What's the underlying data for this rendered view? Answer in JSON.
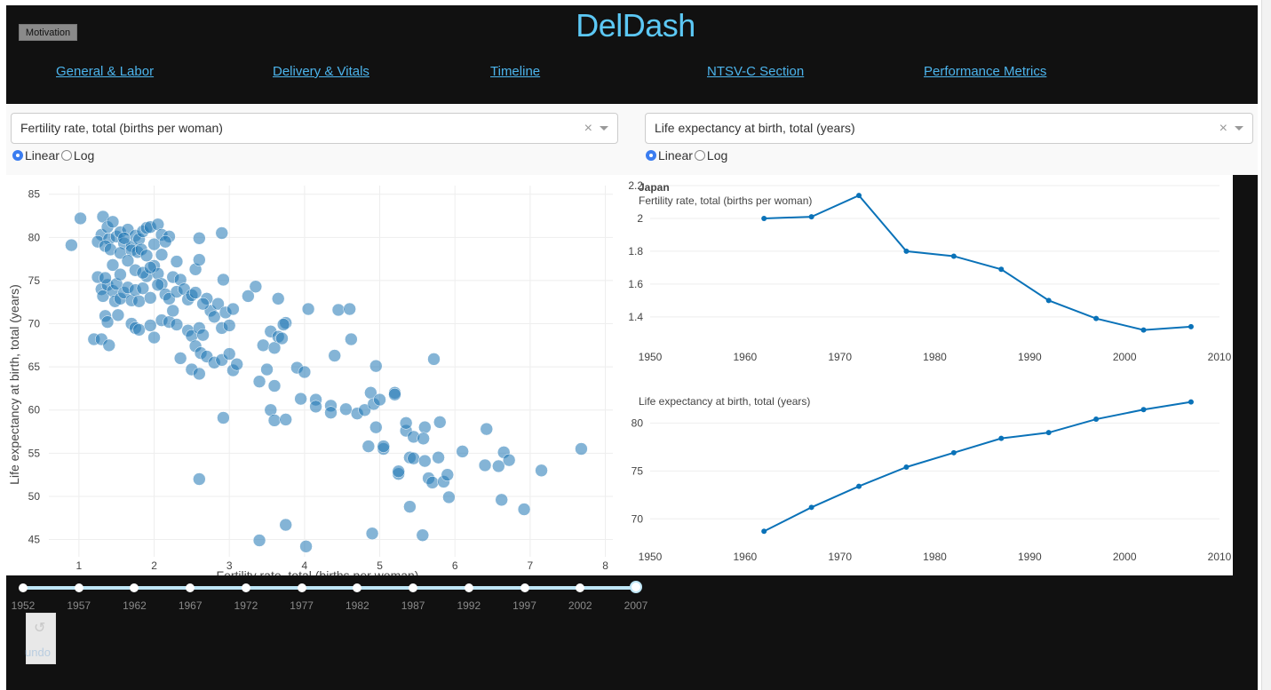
{
  "app": {
    "title": "DelDash",
    "motivation_label": "Motivation"
  },
  "nav": {
    "items": [
      {
        "label": "General & Labor"
      },
      {
        "label": "Delivery & Vitals"
      },
      {
        "label": "Timeline"
      },
      {
        "label": "NTSV-C Section"
      },
      {
        "label": "Performance Metrics"
      }
    ]
  },
  "x_control": {
    "selected": "Fertility rate, total (births per woman)",
    "clear": "×",
    "scale_options": [
      "Linear",
      "Log"
    ],
    "scale_selected": "Linear"
  },
  "y_control": {
    "selected": "Life expectancy at birth, total (years)",
    "clear": "×",
    "scale_options": [
      "Linear",
      "Log"
    ],
    "scale_selected": "Linear"
  },
  "colors": {
    "accent": "#5cc8f5",
    "link": "#4cb4ec",
    "series": "#1f77b4",
    "line": "#0a72b8",
    "background": "#111111"
  },
  "slider": {
    "marks": [
      "1952",
      "1957",
      "1962",
      "1967",
      "1972",
      "1977",
      "1982",
      "1987",
      "1992",
      "1997",
      "2002",
      "2007"
    ],
    "value": "2007"
  },
  "undo": {
    "label": "undo",
    "icon": "undo-icon"
  },
  "chart_data": [
    {
      "type": "scatter",
      "title": "",
      "xlabel": "Fertility rate, total (births per woman)",
      "ylabel": "Life expectancy at birth, total (years)",
      "xlim": [
        0.6,
        8.1
      ],
      "ylim": [
        43,
        86
      ],
      "x_ticks": [
        1,
        2,
        3,
        4,
        5,
        6,
        7,
        8
      ],
      "y_ticks": [
        45,
        50,
        55,
        60,
        65,
        70,
        75,
        80,
        85
      ],
      "grid": true,
      "points": [
        [
          0.9,
          79.1
        ],
        [
          1.02,
          82.2
        ],
        [
          1.3,
          80.3
        ],
        [
          1.32,
          82.4
        ],
        [
          1.38,
          81.2
        ],
        [
          1.45,
          81.8
        ],
        [
          1.25,
          79.5
        ],
        [
          1.4,
          79.8
        ],
        [
          1.5,
          80.1
        ],
        [
          1.55,
          80.6
        ],
        [
          1.6,
          79.3
        ],
        [
          1.65,
          80.9
        ],
        [
          1.7,
          79.0
        ],
        [
          1.75,
          80.2
        ],
        [
          1.8,
          79.8
        ],
        [
          1.85,
          80.7
        ],
        [
          1.9,
          81.1
        ],
        [
          1.95,
          81.2
        ],
        [
          2.05,
          81.5
        ],
        [
          2.1,
          80.3
        ],
        [
          2.2,
          80.1
        ],
        [
          1.35,
          79.0
        ],
        [
          1.42,
          78.6
        ],
        [
          1.55,
          78.2
        ],
        [
          1.6,
          79.9
        ],
        [
          1.7,
          78.5
        ],
        [
          1.78,
          78.3
        ],
        [
          1.83,
          78.6
        ],
        [
          1.9,
          77.9
        ],
        [
          2.0,
          79.2
        ],
        [
          2.1,
          78.0
        ],
        [
          2.15,
          79.5
        ],
        [
          1.25,
          75.4
        ],
        [
          1.3,
          74.0
        ],
        [
          1.32,
          73.2
        ],
        [
          1.38,
          74.5
        ],
        [
          1.45,
          73.8
        ],
        [
          1.48,
          72.6
        ],
        [
          1.5,
          74.6
        ],
        [
          1.55,
          72.9
        ],
        [
          1.6,
          73.6
        ],
        [
          1.65,
          74.2
        ],
        [
          1.7,
          72.7
        ],
        [
          1.75,
          73.9
        ],
        [
          1.8,
          72.6
        ],
        [
          1.85,
          74.1
        ],
        [
          1.9,
          75.5
        ],
        [
          1.95,
          73.0
        ],
        [
          2.0,
          76.7
        ],
        [
          2.05,
          75.8
        ],
        [
          2.1,
          74.6
        ],
        [
          2.15,
          73.4
        ],
        [
          2.2,
          72.9
        ],
        [
          2.25,
          75.4
        ],
        [
          2.3,
          73.7
        ],
        [
          2.35,
          75.1
        ],
        [
          2.4,
          74.0
        ],
        [
          2.45,
          72.8
        ],
        [
          2.5,
          73.3
        ],
        [
          2.55,
          76.3
        ],
        [
          2.6,
          77.4
        ],
        [
          1.35,
          75.3
        ],
        [
          1.45,
          76.8
        ],
        [
          1.55,
          75.7
        ],
        [
          1.65,
          77.3
        ],
        [
          1.75,
          76.2
        ],
        [
          1.85,
          75.9
        ],
        [
          1.95,
          76.5
        ],
        [
          2.05,
          74.5
        ],
        [
          2.3,
          77.2
        ],
        [
          1.2,
          68.2
        ],
        [
          1.3,
          68.2
        ],
        [
          1.35,
          70.9
        ],
        [
          1.38,
          70.2
        ],
        [
          1.4,
          67.5
        ],
        [
          1.52,
          71.0
        ],
        [
          1.7,
          70.0
        ],
        [
          1.75,
          69.5
        ],
        [
          1.8,
          69.3
        ],
        [
          1.95,
          69.8
        ],
        [
          2.0,
          68.4
        ],
        [
          2.1,
          70.4
        ],
        [
          2.2,
          70.2
        ],
        [
          2.25,
          71.5
        ],
        [
          2.3,
          69.9
        ],
        [
          2.35,
          66.0
        ],
        [
          2.45,
          69.2
        ],
        [
          2.5,
          68.6
        ],
        [
          2.55,
          67.4
        ],
        [
          2.6,
          69.5
        ],
        [
          2.62,
          66.6
        ],
        [
          2.65,
          68.7
        ],
        [
          2.7,
          72.9
        ],
        [
          2.75,
          71.5
        ],
        [
          2.8,
          70.8
        ],
        [
          2.85,
          72.3
        ],
        [
          2.9,
          69.5
        ],
        [
          2.95,
          71.3
        ],
        [
          3.0,
          69.8
        ],
        [
          3.05,
          71.7
        ],
        [
          2.5,
          64.7
        ],
        [
          2.6,
          64.2
        ],
        [
          2.7,
          66.2
        ],
        [
          2.8,
          65.5
        ],
        [
          2.9,
          65.8
        ],
        [
          3.0,
          66.5
        ],
        [
          3.05,
          64.6
        ],
        [
          3.1,
          65.3
        ],
        [
          2.55,
          73.6
        ],
        [
          2.65,
          72.3
        ],
        [
          2.6,
          79.9
        ],
        [
          2.9,
          80.5
        ],
        [
          2.92,
          75.1
        ],
        [
          3.25,
          73.2
        ],
        [
          3.35,
          74.3
        ],
        [
          3.45,
          67.5
        ],
        [
          3.55,
          69.1
        ],
        [
          3.6,
          67.2
        ],
        [
          3.65,
          68.5
        ],
        [
          3.7,
          68.3
        ],
        [
          3.75,
          70.1
        ],
        [
          3.72,
          69.9
        ],
        [
          3.65,
          72.9
        ],
        [
          3.5,
          64.7
        ],
        [
          3.6,
          62.8
        ],
        [
          3.4,
          63.3
        ],
        [
          3.55,
          60.0
        ],
        [
          3.6,
          58.8
        ],
        [
          3.75,
          58.9
        ],
        [
          3.9,
          64.9
        ],
        [
          4.0,
          64.4
        ],
        [
          3.95,
          61.3
        ],
        [
          4.05,
          71.7
        ],
        [
          4.15,
          61.2
        ],
        [
          4.15,
          60.4
        ],
        [
          4.35,
          60.5
        ],
        [
          4.35,
          59.7
        ],
        [
          4.4,
          66.3
        ],
        [
          4.45,
          71.6
        ],
        [
          4.6,
          71.7
        ],
        [
          4.62,
          68.2
        ],
        [
          4.55,
          60.1
        ],
        [
          4.7,
          59.6
        ],
        [
          4.8,
          60.0
        ],
        [
          4.88,
          62.0
        ],
        [
          4.92,
          60.7
        ],
        [
          4.95,
          58.0
        ],
        [
          5.0,
          61.2
        ],
        [
          4.95,
          65.1
        ],
        [
          4.85,
          55.8
        ],
        [
          5.05,
          55.5
        ],
        [
          5.05,
          55.8
        ],
        [
          5.2,
          62.0
        ],
        [
          5.25,
          52.6
        ],
        [
          5.25,
          52.9
        ],
        [
          5.35,
          57.6
        ],
        [
          5.35,
          58.5
        ],
        [
          5.4,
          54.5
        ],
        [
          5.45,
          54.4
        ],
        [
          5.45,
          56.9
        ],
        [
          5.6,
          54.1
        ],
        [
          5.6,
          58.0
        ],
        [
          5.58,
          56.7
        ],
        [
          5.65,
          52.1
        ],
        [
          5.7,
          51.6
        ],
        [
          5.78,
          54.5
        ],
        [
          5.8,
          58.6
        ],
        [
          5.85,
          51.7
        ],
        [
          5.9,
          52.5
        ],
        [
          5.92,
          49.9
        ],
        [
          6.1,
          55.2
        ],
        [
          6.4,
          53.6
        ],
        [
          6.42,
          57.8
        ],
        [
          6.58,
          53.5
        ],
        [
          6.65,
          55.1
        ],
        [
          6.72,
          54.2
        ],
        [
          6.62,
          49.6
        ],
        [
          6.92,
          48.5
        ],
        [
          7.15,
          53.0
        ],
        [
          7.68,
          55.5
        ],
        [
          5.4,
          48.8
        ],
        [
          5.72,
          65.9
        ],
        [
          3.4,
          44.9
        ],
        [
          3.75,
          46.7
        ],
        [
          4.02,
          44.2
        ],
        [
          4.9,
          45.7
        ],
        [
          5.57,
          45.5
        ],
        [
          2.6,
          52.0
        ],
        [
          2.92,
          59.1
        ],
        [
          5.2,
          61.8
        ]
      ]
    },
    {
      "type": "line",
      "title": "Japan",
      "subtitle": "Fertility rate, total (births per woman)",
      "xlim": [
        1950,
        2010
      ],
      "x_ticks": [
        1950,
        1960,
        1970,
        1980,
        1990,
        2000,
        2010
      ],
      "ylim": [
        1.28,
        2.2
      ],
      "y_ticks": [
        "2.2",
        "2",
        "1.8",
        "1.6",
        "1.4"
      ],
      "grid": true,
      "x": [
        1962,
        1967,
        1972,
        1977,
        1982,
        1987,
        1992,
        1997,
        2002,
        2007
      ],
      "y": [
        2.0,
        2.01,
        2.14,
        1.8,
        1.77,
        1.69,
        1.5,
        1.39,
        1.32,
        1.34
      ]
    },
    {
      "type": "line",
      "title": "",
      "subtitle": "Life expectancy at birth, total (years)",
      "xlim": [
        1950,
        2010
      ],
      "x_ticks": [
        1950,
        1960,
        1970,
        1980,
        1990,
        2000,
        2010
      ],
      "ylim": [
        67.8,
        83.0
      ],
      "y_ticks": [
        "80",
        "75",
        "70"
      ],
      "grid": true,
      "x": [
        1962,
        1967,
        1972,
        1977,
        1982,
        1987,
        1992,
        1997,
        2002,
        2007
      ],
      "y": [
        68.7,
        71.2,
        73.4,
        75.4,
        76.9,
        78.4,
        79.0,
        80.4,
        81.4,
        82.2
      ]
    }
  ]
}
